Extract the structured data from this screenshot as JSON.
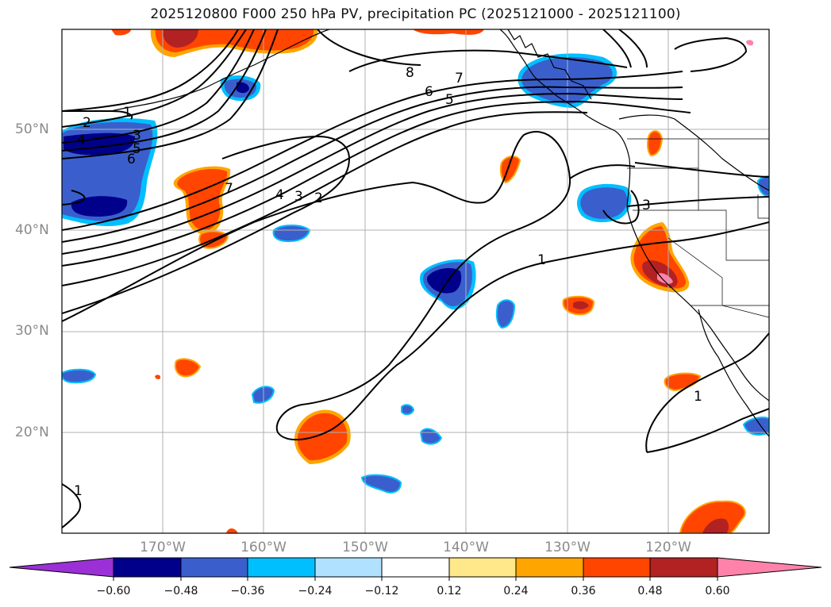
{
  "title": "2025120800 F000 250 hPa PV, precipitation PC (2025121000 - 2025121100)",
  "lat_labels": [
    "50°N",
    "40°N",
    "30°N",
    "20°N"
  ],
  "lon_labels": [
    "170°W",
    "160°W",
    "150°W",
    "140°W",
    "130°W",
    "120°W"
  ],
  "colorbar": {
    "ticks": [
      "−0.60",
      "−0.48",
      "−0.36",
      "−0.24",
      "−0.12",
      "0.12",
      "0.24",
      "0.36",
      "0.48",
      "0.60"
    ],
    "colors": [
      "#9b30d6",
      "#00008b",
      "#3a5fcd",
      "#00bfff",
      "#b0e2ff",
      "#ffffff",
      "#ffe88a",
      "#ffa500",
      "#ff4500",
      "#b22222",
      "#ff82ab"
    ]
  },
  "contour_labels": [
    "1",
    "2",
    "3",
    "4",
    "5",
    "6",
    "7",
    "8",
    "7",
    "6",
    "5",
    "7",
    "4",
    "3",
    "2",
    "3",
    "1",
    "1",
    "1"
  ],
  "colors": {
    "coast": "#000000",
    "contour": "#000000",
    "grid": "#b0b0b0"
  }
}
